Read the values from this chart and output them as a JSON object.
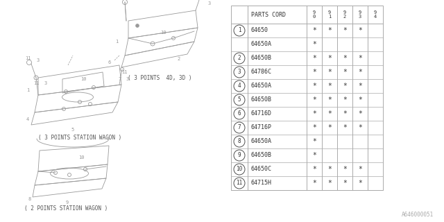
{
  "bg_color": "#ffffff",
  "col_header": "PARTS CORD",
  "year_cols": [
    "9\n0",
    "9\n1",
    "9\n2",
    "9\n3",
    "9\n4"
  ],
  "rows": [
    {
      "ref": "1",
      "part": "64650",
      "marks": [
        true,
        true,
        true,
        true,
        false
      ]
    },
    {
      "ref": "",
      "part": "64650A",
      "marks": [
        true,
        false,
        false,
        false,
        false
      ]
    },
    {
      "ref": "2",
      "part": "64650B",
      "marks": [
        true,
        true,
        true,
        true,
        false
      ]
    },
    {
      "ref": "3",
      "part": "64786C",
      "marks": [
        true,
        true,
        true,
        true,
        false
      ]
    },
    {
      "ref": "4",
      "part": "64650A",
      "marks": [
        true,
        true,
        true,
        true,
        false
      ]
    },
    {
      "ref": "5",
      "part": "64650B",
      "marks": [
        true,
        true,
        true,
        true,
        false
      ]
    },
    {
      "ref": "6",
      "part": "64716D",
      "marks": [
        true,
        true,
        true,
        true,
        false
      ]
    },
    {
      "ref": "7",
      "part": "64716P",
      "marks": [
        true,
        true,
        true,
        true,
        false
      ]
    },
    {
      "ref": "8",
      "part": "64650A",
      "marks": [
        true,
        false,
        false,
        false,
        false
      ]
    },
    {
      "ref": "9",
      "part": "64650B",
      "marks": [
        true,
        false,
        false,
        false,
        false
      ]
    },
    {
      "ref": "10",
      "part": "64650C",
      "marks": [
        true,
        true,
        true,
        true,
        false
      ]
    },
    {
      "ref": "11",
      "part": "64715H",
      "marks": [
        true,
        true,
        true,
        true,
        false
      ]
    }
  ],
  "diagram_label_3pt_4d3d": "( 3 POINTS  4D, 3D )",
  "diagram_label_3pt_sw": "( 3 POINTS STATION WAGON )",
  "diagram_label_2pt_sw": "( 2 POINTS STATION WAGON )",
  "watermark": "A646000051",
  "line_color": "#aaaaaa",
  "draw_color": "#999999",
  "text_color": "#555555",
  "table_line_color": "#aaaaaa",
  "table_text_color": "#333333"
}
